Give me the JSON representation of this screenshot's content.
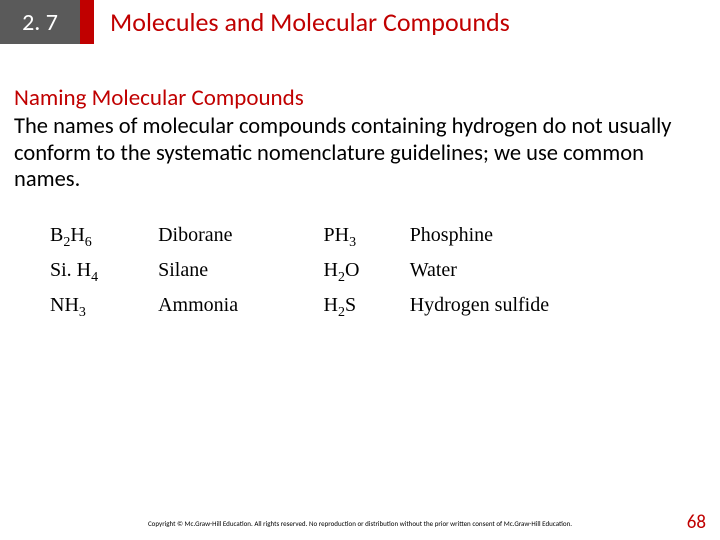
{
  "header": {
    "section_number": "2. 7",
    "title": "Molecules and Molecular Compounds"
  },
  "body": {
    "subtitle": "Naming Molecular Compounds",
    "paragraph": "The names of molecular compounds containing hydrogen do not usually conform to the systematic nomenclature guidelines; we use common names."
  },
  "compounds": {
    "left": [
      {
        "formula_html": "B<sub>2</sub>H<sub>6</sub>",
        "name": "Diborane"
      },
      {
        "formula_html": "Si. H<sub>4</sub>",
        "name": "Silane"
      },
      {
        "formula_html": "NH<sub>3</sub>",
        "name": "Ammonia"
      }
    ],
    "right": [
      {
        "formula_html": "PH<sub>3</sub>",
        "name": "Phosphine"
      },
      {
        "formula_html": "H<sub>2</sub>O",
        "name": "Water"
      },
      {
        "formula_html": "H<sub>2</sub>S",
        "name": "Hydrogen sulfide"
      }
    ]
  },
  "footer": {
    "copyright": "Copyright © Mc.Graw-Hill Education. All rights reserved. No reproduction or distribution without the prior written consent of Mc.Graw-Hill Education.",
    "page_number": "68"
  },
  "colors": {
    "accent_red": "#c00000",
    "box_gray": "#5a5a5a",
    "text_black": "#000000",
    "background": "#ffffff"
  }
}
